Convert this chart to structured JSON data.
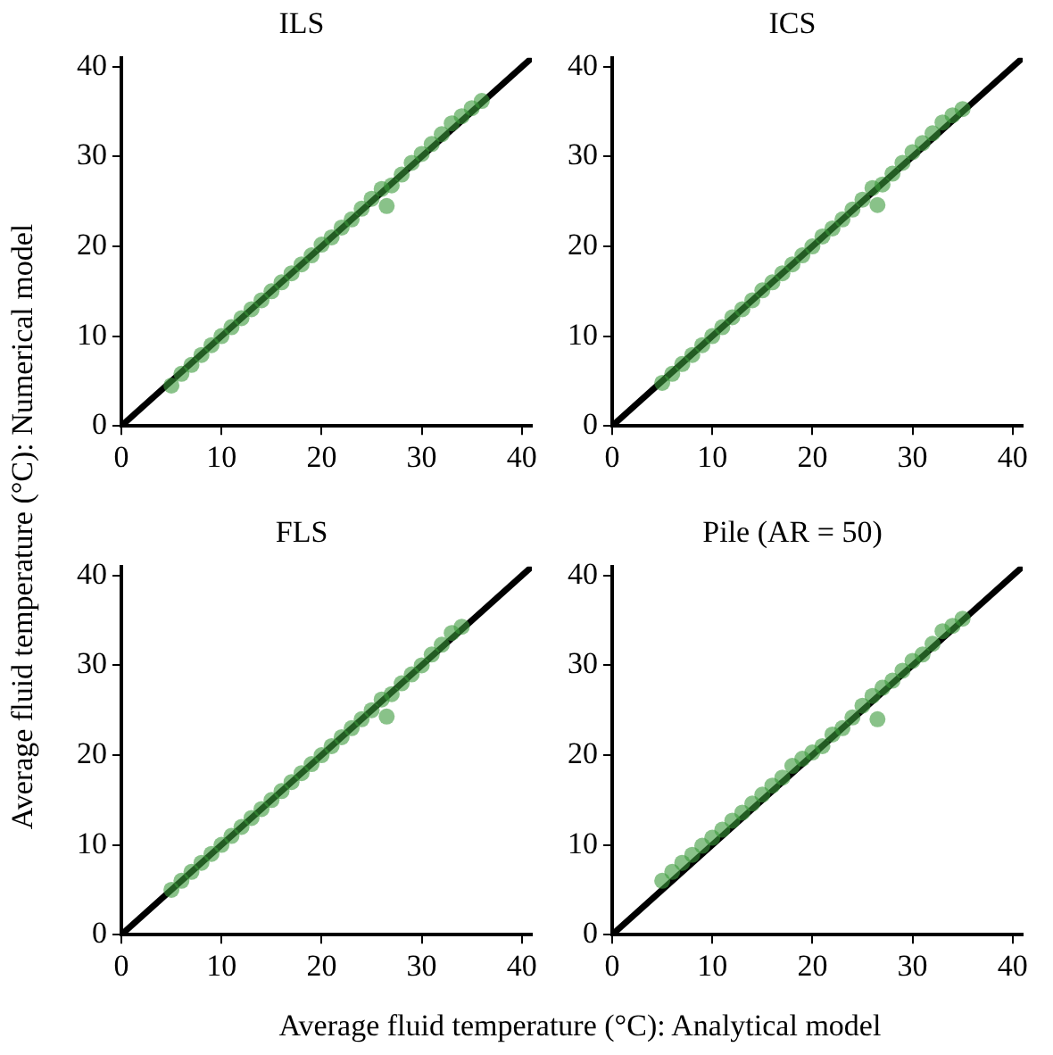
{
  "chart_data": [
    {
      "type": "scatter",
      "title": "ILS",
      "ylabel": "Average fluid temperature (°C): Numerical model",
      "xlim": [
        0,
        41
      ],
      "ylim": [
        0,
        41
      ],
      "xticks": [
        0,
        10,
        20,
        30,
        40
      ],
      "yticks": [
        0,
        10,
        20,
        30,
        40
      ],
      "grid": false,
      "legend": false,
      "series": [
        {
          "marker": "circle",
          "color": "#3a9a3a",
          "x": [
            5,
            6,
            7,
            8,
            9,
            10,
            11,
            12,
            13,
            14,
            15,
            16,
            17,
            18,
            19,
            20,
            21,
            22,
            23,
            24,
            25,
            26,
            26.5,
            27,
            28,
            29,
            30,
            31,
            32,
            33,
            34,
            35,
            36
          ],
          "values": [
            4.5,
            5.8,
            6.8,
            7.9,
            9,
            10,
            11,
            12,
            13,
            14,
            15,
            16,
            17,
            18,
            19,
            20.2,
            21,
            22.1,
            23,
            24.2,
            25.3,
            26.4,
            24.5,
            26.8,
            28,
            29.3,
            30.3,
            31.4,
            32.5,
            33.7,
            34.5,
            35.4,
            36.2
          ]
        },
        {
          "type": "line",
          "color": "#000000",
          "x": [
            0,
            41
          ],
          "values": [
            0,
            41
          ]
        }
      ]
    },
    {
      "type": "scatter",
      "title": "ICS",
      "xlim": [
        0,
        41
      ],
      "ylim": [
        0,
        41
      ],
      "xticks": [
        0,
        10,
        20,
        30,
        40
      ],
      "yticks": [
        0,
        10,
        20,
        30,
        40
      ],
      "grid": false,
      "legend": false,
      "series": [
        {
          "marker": "circle",
          "color": "#3a9a3a",
          "x": [
            5,
            6,
            7,
            8,
            9,
            10,
            11,
            12,
            13,
            14,
            15,
            16,
            17,
            18,
            19,
            20,
            21,
            22,
            23,
            24,
            25,
            26,
            26.5,
            27,
            28,
            29,
            30,
            31,
            32,
            33,
            34,
            35
          ],
          "values": [
            4.8,
            5.8,
            6.9,
            7.9,
            9,
            10,
            11,
            12.1,
            13,
            14,
            15.1,
            16,
            17,
            18,
            19,
            20,
            21.1,
            22,
            23,
            24.1,
            25.2,
            26.5,
            24.6,
            26.9,
            28.1,
            29.3,
            30.5,
            31.5,
            32.6,
            33.8,
            34.6,
            35.3
          ]
        },
        {
          "type": "line",
          "color": "#000000",
          "x": [
            0,
            41
          ],
          "values": [
            0,
            41
          ]
        }
      ]
    },
    {
      "type": "scatter",
      "title": "FLS",
      "xlabel": "Average fluid temperature (°C): Analytical model",
      "xlim": [
        0,
        41
      ],
      "ylim": [
        0,
        41
      ],
      "xticks": [
        0,
        10,
        20,
        30,
        40
      ],
      "yticks": [
        0,
        10,
        20,
        30,
        40
      ],
      "grid": false,
      "legend": false,
      "series": [
        {
          "marker": "circle",
          "color": "#3a9a3a",
          "x": [
            5,
            6,
            7,
            8,
            9,
            10,
            11,
            12,
            13,
            14,
            15,
            16,
            17,
            18,
            19,
            20,
            21,
            22,
            23,
            24,
            25,
            26,
            26.5,
            27,
            28,
            29,
            30,
            31,
            32,
            33,
            34
          ],
          "values": [
            5,
            6,
            7,
            8,
            9,
            10,
            11,
            12,
            13,
            14,
            15,
            16,
            17,
            18,
            19,
            20,
            21,
            22,
            23,
            24,
            25,
            26.2,
            24.3,
            26.8,
            28,
            29,
            30,
            31.2,
            32.3,
            33.6,
            34.3
          ]
        },
        {
          "type": "line",
          "color": "#000000",
          "x": [
            0,
            41
          ],
          "values": [
            0,
            41
          ]
        }
      ]
    },
    {
      "type": "scatter",
      "title": "Pile (AR = 50)",
      "xlim": [
        0,
        41
      ],
      "ylim": [
        0,
        41
      ],
      "xticks": [
        0,
        10,
        20,
        30,
        40
      ],
      "yticks": [
        0,
        10,
        20,
        30,
        40
      ],
      "grid": false,
      "legend": false,
      "series": [
        {
          "marker": "circle",
          "color": "#3a9a3a",
          "x": [
            5,
            6,
            7,
            8,
            9,
            10,
            11,
            12,
            13,
            14,
            15,
            16,
            17,
            18,
            19,
            20,
            21,
            22,
            23,
            24,
            25,
            26,
            26.5,
            27,
            28,
            29,
            30,
            31,
            32,
            33,
            34,
            35
          ],
          "values": [
            6,
            7,
            8,
            8.9,
            9.9,
            10.8,
            11.7,
            12.7,
            13.6,
            14.6,
            15.6,
            16.6,
            17.5,
            18.8,
            19.6,
            20.3,
            21,
            22.3,
            23,
            24.2,
            25.5,
            26.6,
            24,
            27.5,
            28.3,
            29.4,
            30.5,
            31.2,
            32.4,
            33.8,
            34.4,
            35.2
          ]
        },
        {
          "type": "line",
          "color": "#000000",
          "x": [
            0,
            41
          ],
          "values": [
            0,
            41
          ]
        }
      ]
    }
  ]
}
